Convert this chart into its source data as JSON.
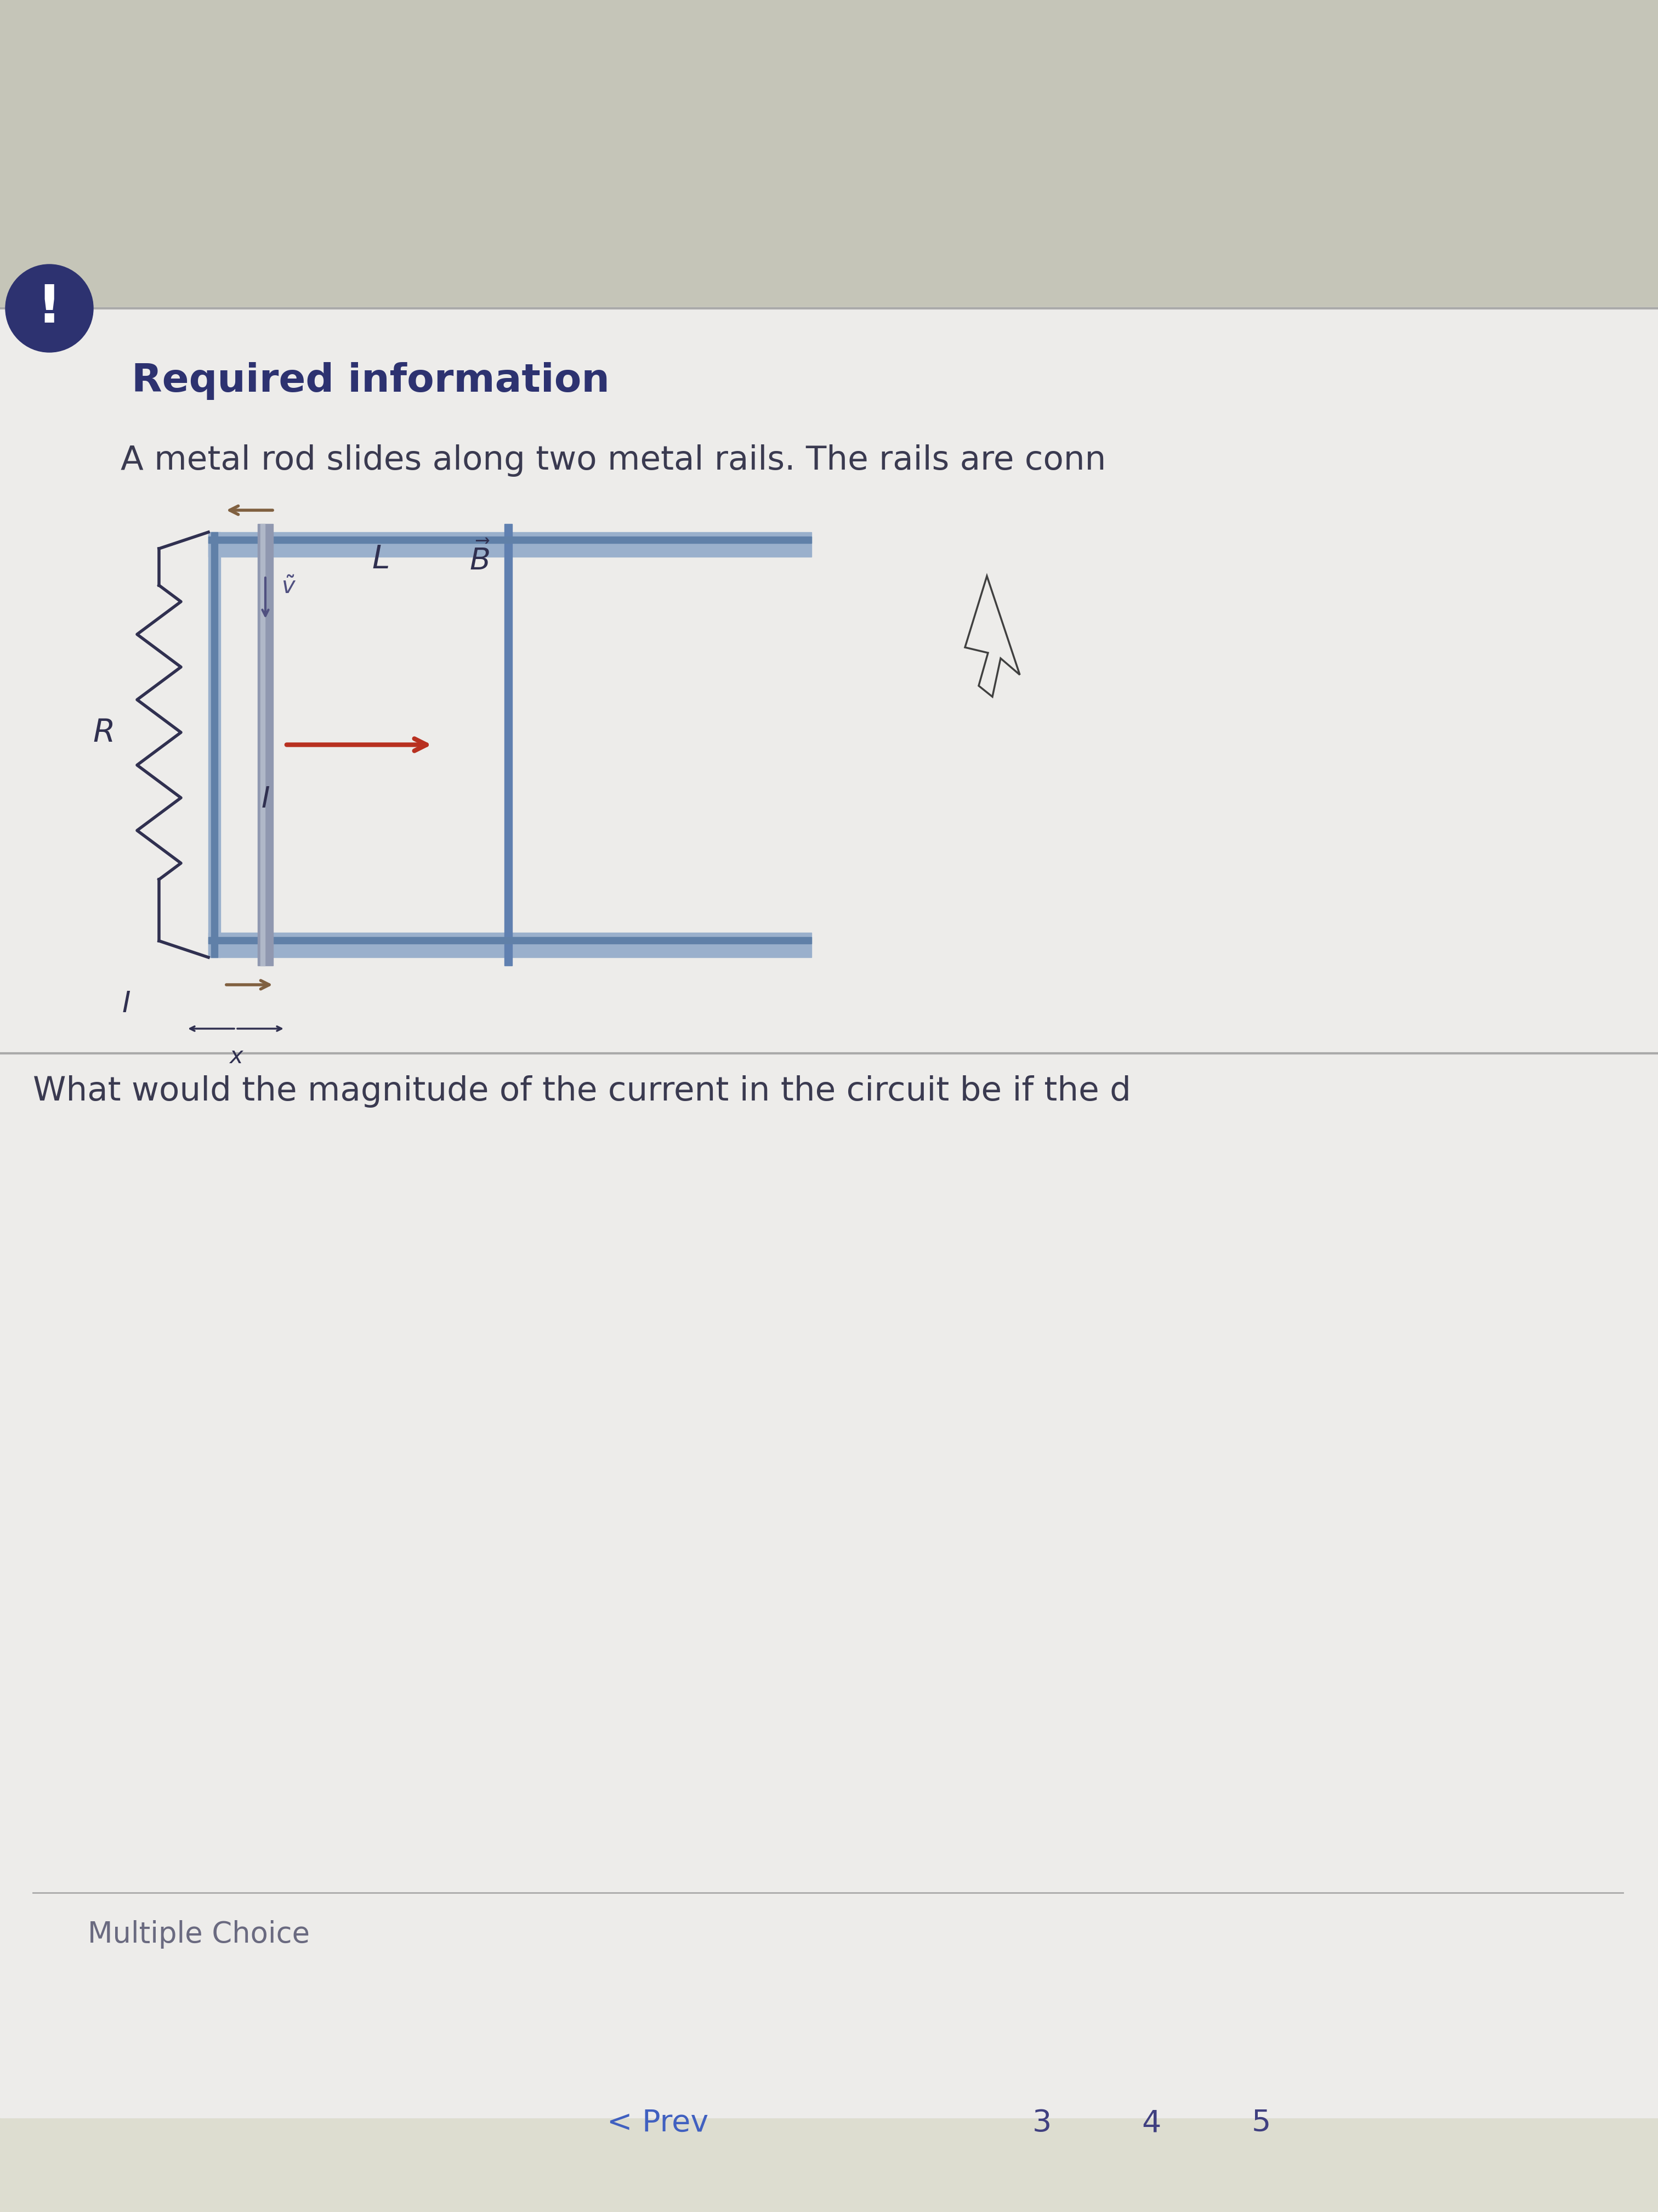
{
  "bg_color": "#ccccc0",
  "card_bg": "#e8e7e0",
  "white_card_bg": "#edecea",
  "title_text": "Required information",
  "title_color": "#2d3270",
  "title_fontsize": 52,
  "body_text": "A metal rod slides along two metal rails. The rails are conn",
  "body_color": "#3a3a50",
  "body_fontsize": 44,
  "question_text": "What would the magnitude of the current in the circuit be if the d",
  "question_color": "#3a3a50",
  "question_fontsize": 44,
  "mc_text": "Multiple Choice",
  "mc_color": "#6a6a80",
  "mc_fontsize": 38,
  "nav_prev": "< Prev",
  "nav_color": "#4060c0",
  "nav_fontsize": 40,
  "nav_nums_color": "#404080",
  "rail_color_top": "#9ab0cc",
  "rail_color_dark": "#6080a8",
  "rod_color": "#9098b0",
  "resistor_color": "#303050",
  "arrow_red": "#b83020",
  "arrow_brown": "#806040",
  "label_color": "#303050",
  "exclaim_bg": "#2d3270",
  "exclaim_color": "#ffffff",
  "sep_line_color": "#aaaaaa",
  "top_area_color": "#c5c5b8",
  "bottom_area_color": "#ddddd0"
}
